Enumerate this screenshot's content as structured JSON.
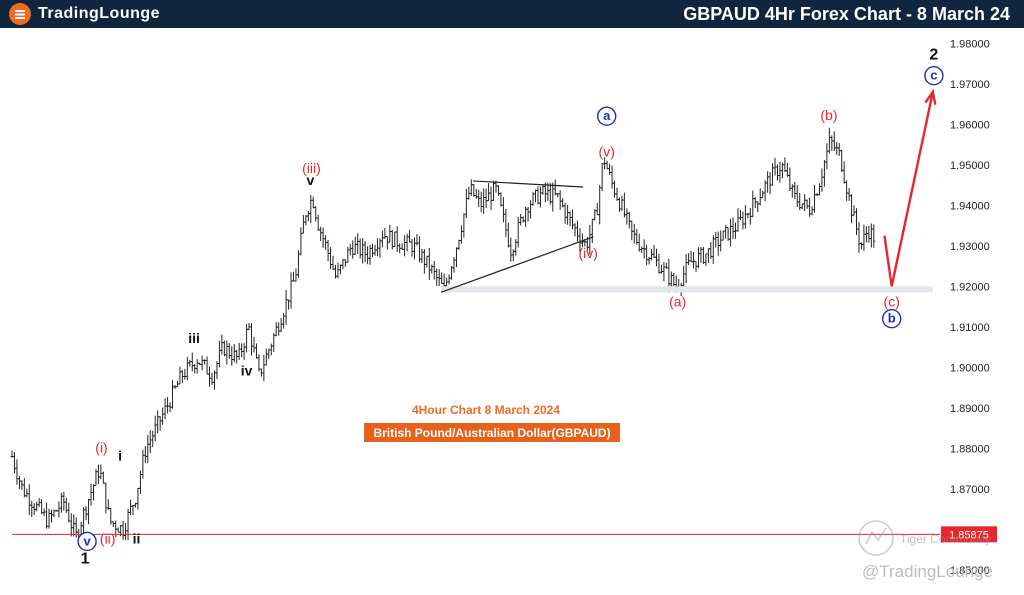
{
  "header": {
    "logo_text": "TradingLounge",
    "title": "GBPAUD 4Hr Forex Chart - 8 March 24"
  },
  "chart_data": {
    "type": "candlestick",
    "instrument": "GBPAUD",
    "timeframe": "4 Hour",
    "annotation_title": "4Hour Chart 8 March 2024",
    "annotation_subtitle": "British Pound/Australian Dollar(GBPAUD)",
    "ylim": [
      1.845,
      1.985
    ],
    "y_ticks": [
      "1.98000",
      "1.97000",
      "1.96000",
      "1.95000",
      "1.94000",
      "1.93000",
      "1.92000",
      "1.91000",
      "1.90000",
      "1.89000",
      "1.88000",
      "1.87000",
      "1.85000"
    ],
    "price_marker": {
      "label": "1.85875",
      "value": 1.85875,
      "color": "#e8262b"
    },
    "support_zone": [
      1.9185,
      1.92
    ],
    "price_path": [
      [
        0,
        1.878
      ],
      [
        10,
        1.87
      ],
      [
        22,
        1.866
      ],
      [
        35,
        1.862
      ],
      [
        50,
        1.867
      ],
      [
        62,
        1.858
      ],
      [
        75,
        1.868
      ],
      [
        85,
        1.875
      ],
      [
        95,
        1.862
      ],
      [
        108,
        1.86
      ],
      [
        120,
        1.868
      ],
      [
        130,
        1.88
      ],
      [
        140,
        1.885
      ],
      [
        150,
        1.89
      ],
      [
        165,
        1.898
      ],
      [
        180,
        1.902
      ],
      [
        195,
        1.898
      ],
      [
        205,
        1.905
      ],
      [
        220,
        1.902
      ],
      [
        230,
        1.91
      ],
      [
        240,
        1.898
      ],
      [
        255,
        1.908
      ],
      [
        265,
        1.915
      ],
      [
        275,
        1.922
      ],
      [
        285,
        1.938
      ],
      [
        292,
        1.942
      ],
      [
        298,
        1.935
      ],
      [
        305,
        1.93
      ],
      [
        315,
        1.922
      ],
      [
        330,
        1.93
      ],
      [
        345,
        1.928
      ],
      [
        360,
        1.933
      ],
      [
        375,
        1.931
      ],
      [
        390,
        1.93
      ],
      [
        405,
        1.925
      ],
      [
        420,
        1.919
      ],
      [
        432,
        1.93
      ],
      [
        445,
        1.944
      ],
      [
        455,
        1.94
      ],
      [
        470,
        1.944
      ],
      [
        485,
        1.929
      ],
      [
        500,
        1.94
      ],
      [
        515,
        1.943
      ],
      [
        530,
        1.942
      ],
      [
        545,
        1.935
      ],
      [
        558,
        1.93
      ],
      [
        568,
        1.938
      ],
      [
        575,
        1.952
      ],
      [
        582,
        1.946
      ],
      [
        592,
        1.94
      ],
      [
        602,
        1.933
      ],
      [
        615,
        1.929
      ],
      [
        630,
        1.925
      ],
      [
        645,
        1.92
      ],
      [
        660,
        1.926
      ],
      [
        675,
        1.928
      ],
      [
        690,
        1.932
      ],
      [
        705,
        1.935
      ],
      [
        720,
        1.94
      ],
      [
        735,
        1.946
      ],
      [
        748,
        1.95
      ],
      [
        760,
        1.942
      ],
      [
        775,
        1.939
      ],
      [
        785,
        1.946
      ],
      [
        795,
        1.956
      ],
      [
        805,
        1.952
      ],
      [
        815,
        1.94
      ],
      [
        825,
        1.93
      ],
      [
        832,
        1.934
      ],
      [
        838,
        1.932
      ]
    ],
    "x_total": 900,
    "triangle": {
      "upper": [
        [
          448,
          1.946
        ],
        [
          555,
          1.9445
        ]
      ],
      "lower": [
        [
          417,
          1.9185
        ],
        [
          565,
          1.9322
        ]
      ]
    },
    "projection": [
      [
        848,
        1.9325
      ],
      [
        855,
        1.92
      ],
      [
        895,
        1.968
      ]
    ],
    "wave_labels": [
      {
        "text": "1",
        "x": 71,
        "y": 1.8515,
        "style": "black-big"
      },
      {
        "text": "v",
        "x": 73,
        "y": 1.856,
        "style": "blue-circle"
      },
      {
        "text": "(ii)",
        "x": 93,
        "y": 1.8565,
        "style": "red"
      },
      {
        "text": "ii",
        "x": 121,
        "y": 1.8565,
        "style": "black"
      },
      {
        "text": "(i)",
        "x": 87,
        "y": 1.879,
        "style": "red"
      },
      {
        "text": "i",
        "x": 105,
        "y": 1.877,
        "style": "black"
      },
      {
        "text": "iii",
        "x": 177,
        "y": 1.906,
        "style": "black"
      },
      {
        "text": "iv",
        "x": 228,
        "y": 1.898,
        "style": "black"
      },
      {
        "text": "(iii)",
        "x": 291,
        "y": 1.948,
        "style": "red"
      },
      {
        "text": "v",
        "x": 290,
        "y": 1.945,
        "style": "black"
      },
      {
        "text": "a",
        "x": 578,
        "y": 1.961,
        "style": "blue-circle"
      },
      {
        "text": "(v)",
        "x": 578,
        "y": 1.952,
        "style": "red"
      },
      {
        "text": "(iv)",
        "x": 560,
        "y": 1.927,
        "style": "red"
      },
      {
        "text": "(a)",
        "x": 647,
        "y": 1.915,
        "style": "red"
      },
      {
        "text": "(b)",
        "x": 794,
        "y": 1.961,
        "style": "red"
      },
      {
        "text": "(c)",
        "x": 855,
        "y": 1.915,
        "style": "red"
      },
      {
        "text": "b",
        "x": 855,
        "y": 1.911,
        "style": "blue-circle"
      },
      {
        "text": "2",
        "x": 896,
        "y": 1.976,
        "style": "black-big"
      },
      {
        "text": "c",
        "x": 896,
        "y": 1.971,
        "style": "blue-circle"
      }
    ]
  },
  "watermark": {
    "tiger": "Tiger Community",
    "handle": "@TradingLounge"
  }
}
